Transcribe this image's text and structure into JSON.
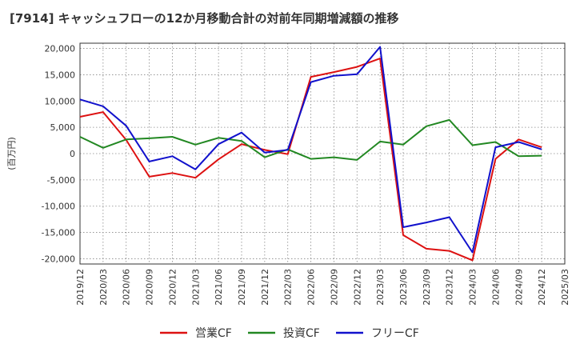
{
  "chart_data": {
    "type": "line",
    "title": "[7914]  キャッシュフローの12か月移動合計の対前年同期増減額の推移",
    "ylabel": "(百万円)",
    "xlabel": "",
    "ylim": [
      -21000,
      21000
    ],
    "yticks": [
      20000,
      15000,
      10000,
      5000,
      0,
      -5000,
      -10000,
      -15000,
      -20000
    ],
    "ytick_labels": [
      "20,000",
      "15,000",
      "10,000",
      "5,000",
      "0",
      "-5,000",
      "-10,000",
      "-15,000",
      "-20,000"
    ],
    "x": [
      "2019/12",
      "2020/03",
      "2020/06",
      "2020/09",
      "2020/12",
      "2021/03",
      "2021/06",
      "2021/09",
      "2021/12",
      "2022/03",
      "2022/06",
      "2022/09",
      "2022/12",
      "2023/03",
      "2023/06",
      "2023/09",
      "2023/12",
      "2024/03",
      "2024/06",
      "2024/09",
      "2024/12",
      "2025/03"
    ],
    "grid": true,
    "legend": "bottom",
    "series": [
      {
        "name": "営業CF",
        "color": "#dd1111",
        "values": [
          7000,
          7900,
          2600,
          -4400,
          -3700,
          -4600,
          -1100,
          1800,
          700,
          -100,
          14600,
          15500,
          16500,
          18100,
          -15500,
          -18100,
          -18500,
          -20300,
          -1000,
          2700,
          1200,
          null
        ]
      },
      {
        "name": "投資CF",
        "color": "#228822",
        "values": [
          3200,
          1100,
          2700,
          2900,
          3200,
          1700,
          3000,
          2400,
          -700,
          800,
          -1000,
          -700,
          -1200,
          2300,
          1700,
          5200,
          6400,
          1600,
          2200,
          -500,
          -400,
          null
        ]
      },
      {
        "name": "フリーCF",
        "color": "#1111cc",
        "values": [
          10300,
          9000,
          5300,
          -1500,
          -500,
          -3000,
          1800,
          4000,
          200,
          700,
          13600,
          14800,
          15100,
          20300,
          -14000,
          -13100,
          -12100,
          -18800,
          1200,
          2200,
          800,
          null
        ]
      }
    ]
  }
}
